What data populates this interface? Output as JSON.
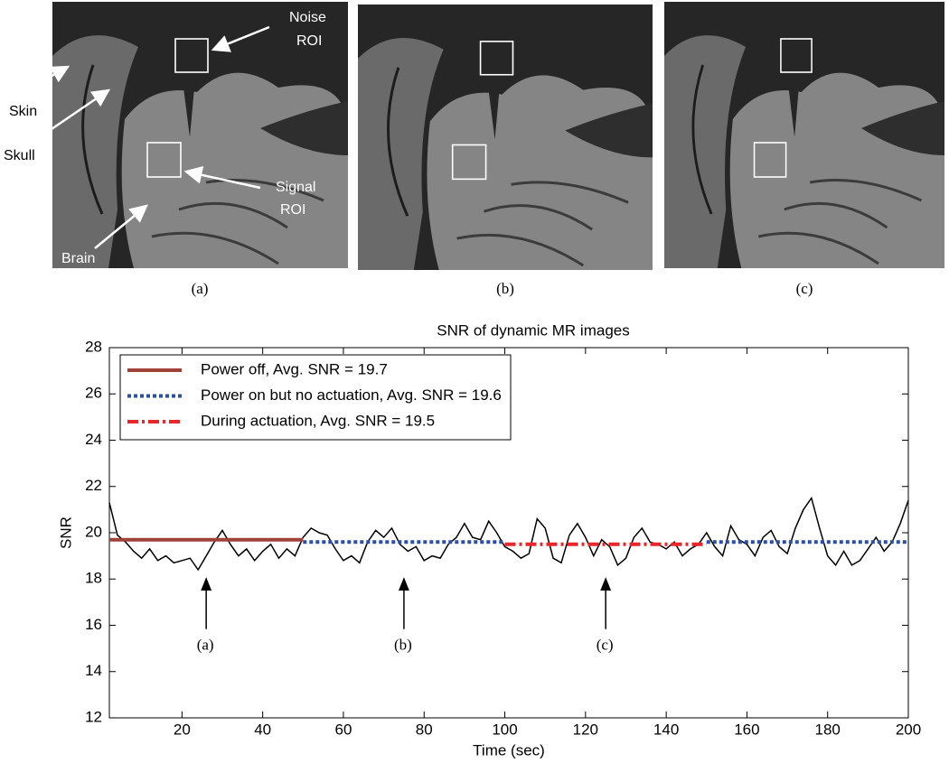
{
  "figure": {
    "panel_labels": [
      "(a)",
      "(b)",
      "(c)"
    ],
    "image_labels": {
      "skin": "Skin",
      "skull": "Skull",
      "brain": "Brain",
      "noise_roi": [
        "Noise",
        "ROI"
      ],
      "signal_roi": [
        "Signal",
        "ROI"
      ]
    }
  },
  "chart_data": {
    "type": "line",
    "title": "SNR of dynamic MR images",
    "x_label": "Time (sec)",
    "y_label": "SNR",
    "xlim": [
      2,
      200
    ],
    "ylim": [
      12,
      28
    ],
    "xticks": [
      20,
      40,
      60,
      80,
      100,
      120,
      140,
      160,
      180,
      200
    ],
    "yticks": [
      12,
      14,
      16,
      18,
      20,
      22,
      24,
      26,
      28
    ],
    "grid": false,
    "legend": "upper left",
    "series": [
      {
        "color": "#000000",
        "line_style": "solid",
        "x": [
          2,
          4,
          6,
          8,
          10,
          12,
          14,
          16,
          18,
          20,
          22,
          24,
          26,
          28,
          30,
          32,
          34,
          36,
          38,
          40,
          42,
          44,
          46,
          48,
          50,
          52,
          54,
          56,
          58,
          60,
          62,
          64,
          66,
          68,
          70,
          72,
          74,
          76,
          78,
          80,
          82,
          84,
          86,
          88,
          90,
          92,
          94,
          96,
          98,
          100,
          102,
          104,
          106,
          108,
          110,
          112,
          114,
          116,
          118,
          120,
          122,
          124,
          126,
          128,
          130,
          132,
          134,
          136,
          138,
          140,
          142,
          144,
          146,
          148,
          150,
          152,
          154,
          156,
          158,
          160,
          162,
          164,
          166,
          168,
          170,
          172,
          174,
          176,
          178,
          180,
          182,
          184,
          186,
          188,
          190,
          192,
          194,
          196,
          198,
          200
        ],
        "values": [
          21.3,
          19.9,
          19.6,
          19.2,
          18.9,
          19.3,
          18.8,
          19.0,
          18.7,
          18.8,
          18.9,
          18.4,
          19.0,
          19.6,
          20.1,
          19.5,
          19.0,
          19.3,
          18.8,
          19.2,
          19.5,
          18.9,
          19.3,
          19.0,
          19.8,
          20.2,
          20.0,
          19.9,
          19.3,
          18.8,
          19.0,
          18.7,
          19.6,
          20.1,
          19.8,
          20.2,
          19.5,
          19.2,
          19.4,
          18.8,
          19.0,
          18.9,
          19.5,
          19.8,
          20.4,
          19.8,
          19.7,
          20.5,
          20.0,
          19.4,
          19.2,
          18.9,
          19.1,
          20.6,
          20.2,
          18.9,
          18.7,
          19.9,
          20.4,
          19.8,
          19.0,
          19.7,
          19.4,
          18.6,
          18.9,
          19.8,
          20.2,
          19.6,
          19.5,
          19.3,
          19.6,
          19.0,
          19.3,
          19.5,
          20.0,
          19.4,
          19.0,
          20.3,
          19.7,
          19.5,
          19.0,
          19.8,
          20.1,
          19.4,
          19.1,
          20.2,
          21.0,
          21.5,
          20.2,
          19.0,
          18.6,
          19.2,
          18.6,
          18.8,
          19.3,
          19.8,
          19.2,
          19.6,
          20.4,
          21.4
        ]
      },
      {
        "name": "Power off, Avg. SNR = 19.7",
        "color": "#a0413a",
        "line_style": "solid",
        "x": [
          2,
          50
        ],
        "values": [
          19.7,
          19.7
        ]
      },
      {
        "name": "Power on but no actuation, Avg. SNR = 19.6",
        "color": "#2b4ea6",
        "line_style": "dotted",
        "x": [
          50,
          100,
          125,
          150,
          200
        ],
        "values": [
          19.6,
          19.6,
          null,
          19.6,
          19.6
        ]
      },
      {
        "name": "During actuation, Avg. SNR = 19.5",
        "color": "#e8262c",
        "line_style": "dashdot",
        "x": [
          100,
          150
        ],
        "values": [
          19.5,
          19.5
        ]
      }
    ],
    "annotations": [
      {
        "text": "(a)",
        "x": 26,
        "y": 18.1
      },
      {
        "text": "(b)",
        "x": 75,
        "y": 18.1
      },
      {
        "text": "(c)",
        "x": 125,
        "y": 18.1
      }
    ]
  }
}
